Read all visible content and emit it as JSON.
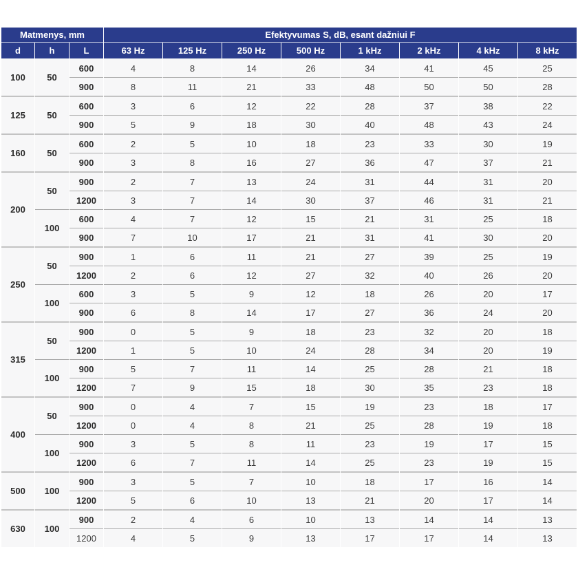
{
  "colors": {
    "header_bg": "#2a3c8c",
    "header_text": "#ffffff",
    "row_bg": "#f7f7f8",
    "body_text": "#3d3d3d",
    "dim_text": "#2b2b2b",
    "sep_thin": "#a9a9a9",
    "sep_thick": "#c3c3c3"
  },
  "table": {
    "header": {
      "dims_title": "Matmenys, mm",
      "eff_title": "Efektyvumas S, dB, esant dažniui F",
      "dim_cols": [
        "d",
        "h",
        "L"
      ],
      "freq_cols": [
        "63 Hz",
        "125 Hz",
        "250 Hz",
        "500 Hz",
        "1 kHz",
        "2 kHz",
        "4 kHz",
        "8 kHz"
      ]
    },
    "groups": [
      {
        "d": "100",
        "subgroups": [
          {
            "h": "50",
            "rows": [
              {
                "L": "600",
                "values": [
                  4,
                  8,
                  14,
                  26,
                  34,
                  41,
                  45,
                  25
                ]
              },
              {
                "L": "900",
                "values": [
                  8,
                  11,
                  21,
                  33,
                  48,
                  50,
                  50,
                  28
                ]
              }
            ]
          }
        ]
      },
      {
        "d": "125",
        "subgroups": [
          {
            "h": "50",
            "rows": [
              {
                "L": "600",
                "values": [
                  3,
                  6,
                  12,
                  22,
                  28,
                  37,
                  38,
                  22
                ]
              },
              {
                "L": "900",
                "values": [
                  5,
                  9,
                  18,
                  30,
                  40,
                  48,
                  43,
                  24
                ]
              }
            ]
          }
        ]
      },
      {
        "d": "160",
        "subgroups": [
          {
            "h": "50",
            "rows": [
              {
                "L": "600",
                "values": [
                  2,
                  5,
                  10,
                  18,
                  23,
                  33,
                  30,
                  19
                ]
              },
              {
                "L": "900",
                "values": [
                  3,
                  8,
                  16,
                  27,
                  36,
                  47,
                  37,
                  21
                ]
              }
            ]
          }
        ]
      },
      {
        "d": "200",
        "subgroups": [
          {
            "h": "50",
            "rows": [
              {
                "L": "900",
                "values": [
                  2,
                  7,
                  13,
                  24,
                  31,
                  44,
                  31,
                  20
                ]
              },
              {
                "L": "1200",
                "values": [
                  3,
                  7,
                  14,
                  30,
                  37,
                  46,
                  31,
                  21
                ]
              }
            ]
          },
          {
            "h": "100",
            "rows": [
              {
                "L": "600",
                "values": [
                  4,
                  7,
                  12,
                  15,
                  21,
                  31,
                  25,
                  18
                ]
              },
              {
                "L": "900",
                "values": [
                  7,
                  10,
                  17,
                  21,
                  31,
                  41,
                  30,
                  20
                ]
              }
            ]
          }
        ]
      },
      {
        "d": "250",
        "subgroups": [
          {
            "h": "50",
            "rows": [
              {
                "L": "900",
                "values": [
                  1,
                  6,
                  11,
                  21,
                  27,
                  39,
                  25,
                  19
                ]
              },
              {
                "L": "1200",
                "values": [
                  2,
                  6,
                  12,
                  27,
                  32,
                  40,
                  26,
                  20
                ]
              }
            ]
          },
          {
            "h": "100",
            "rows": [
              {
                "L": "600",
                "values": [
                  3,
                  5,
                  9,
                  12,
                  18,
                  26,
                  20,
                  17
                ]
              },
              {
                "L": "900",
                "values": [
                  6,
                  8,
                  14,
                  17,
                  27,
                  36,
                  24,
                  20
                ]
              }
            ]
          }
        ]
      },
      {
        "d": "315",
        "subgroups": [
          {
            "h": "50",
            "rows": [
              {
                "L": "900",
                "values": [
                  0,
                  5,
                  9,
                  18,
                  23,
                  32,
                  20,
                  18
                ]
              },
              {
                "L": "1200",
                "values": [
                  1,
                  5,
                  10,
                  24,
                  28,
                  34,
                  20,
                  19
                ]
              }
            ]
          },
          {
            "h": "100",
            "rows": [
              {
                "L": "900",
                "values": [
                  5,
                  7,
                  11,
                  14,
                  25,
                  28,
                  21,
                  18
                ]
              },
              {
                "L": "1200",
                "values": [
                  7,
                  9,
                  15,
                  18,
                  30,
                  35,
                  23,
                  18
                ]
              }
            ]
          }
        ]
      },
      {
        "d": "400",
        "subgroups": [
          {
            "h": "50",
            "rows": [
              {
                "L": "900",
                "values": [
                  0,
                  4,
                  7,
                  15,
                  19,
                  23,
                  18,
                  17
                ]
              },
              {
                "L": "1200",
                "values": [
                  0,
                  4,
                  8,
                  21,
                  25,
                  28,
                  19,
                  18
                ]
              }
            ]
          },
          {
            "h": "100",
            "rows": [
              {
                "L": "900",
                "values": [
                  3,
                  5,
                  8,
                  11,
                  23,
                  19,
                  17,
                  15
                ]
              },
              {
                "L": "1200",
                "values": [
                  6,
                  7,
                  11,
                  14,
                  25,
                  23,
                  19,
                  15
                ]
              }
            ]
          }
        ]
      },
      {
        "d": "500",
        "subgroups": [
          {
            "h": "100",
            "rows": [
              {
                "L": "900",
                "values": [
                  3,
                  5,
                  7,
                  10,
                  18,
                  17,
                  16,
                  14
                ]
              },
              {
                "L": "1200",
                "values": [
                  5,
                  6,
                  10,
                  13,
                  21,
                  20,
                  17,
                  14
                ]
              }
            ]
          }
        ]
      },
      {
        "d": "630",
        "subgroups": [
          {
            "h": "100",
            "rows": [
              {
                "L": "900",
                "values": [
                  2,
                  4,
                  6,
                  10,
                  13,
                  14,
                  14,
                  13
                ]
              },
              {
                "L": "1200",
                "L_bold": false,
                "values": [
                  4,
                  5,
                  9,
                  13,
                  17,
                  17,
                  14,
                  13
                ]
              }
            ]
          }
        ]
      }
    ]
  }
}
